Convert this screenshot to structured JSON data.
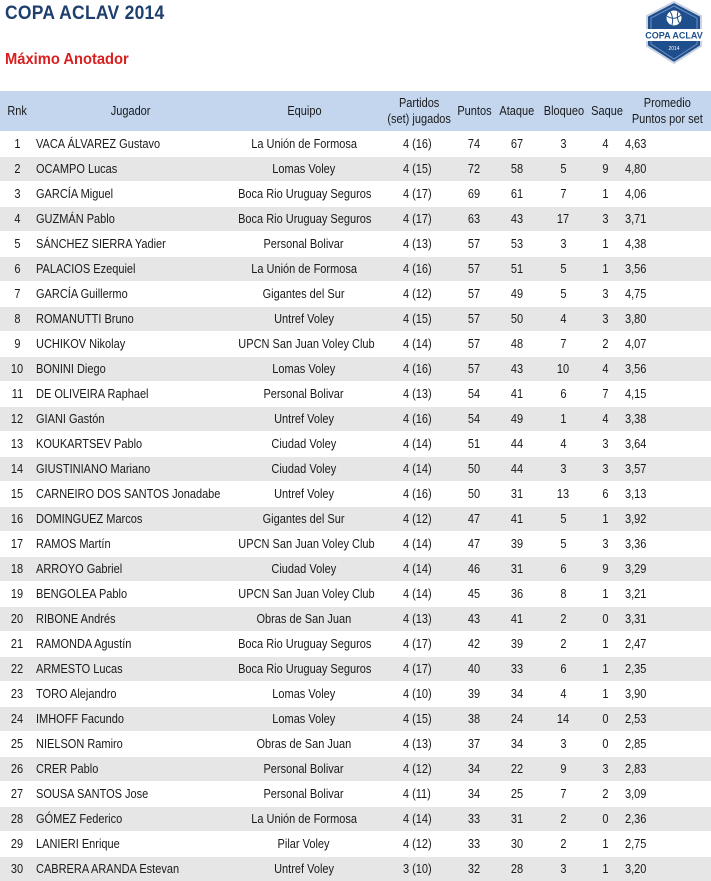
{
  "header": {
    "title": "COPA ACLAV 2014",
    "subtitle": "Máximo Anotador",
    "logo_text": "COPA ACLAV",
    "logo_year": "2014"
  },
  "colors": {
    "title": "#1f3f6e",
    "subtitle": "#d92020",
    "header_bg": "#c3d6ee",
    "row_alt": "#e6e6e6",
    "logo_blue": "#1f4e8c"
  },
  "columns": [
    [
      "Rnk"
    ],
    [
      "Jugador"
    ],
    [
      "Equipo"
    ],
    [
      "Partidos",
      "(set) jugados"
    ],
    [
      "Puntos"
    ],
    [
      "Ataque"
    ],
    [
      "Bloqueo"
    ],
    [
      "Saque"
    ],
    [
      "Promedio",
      "Puntos por set"
    ]
  ],
  "rows": [
    [
      "1",
      "VACA ÁLVAREZ Gustavo",
      "La Unión de Formosa",
      "4 (16)",
      "74",
      "67",
      "3",
      "4",
      "4,63"
    ],
    [
      "2",
      "OCAMPO Lucas",
      "Lomas Voley",
      "4 (15)",
      "72",
      "58",
      "5",
      "9",
      "4,80"
    ],
    [
      "3",
      "GARCÍA Miguel",
      "Boca Rio Uruguay Seguros",
      "4 (17)",
      "69",
      "61",
      "7",
      "1",
      "4,06"
    ],
    [
      "4",
      "GUZMÁN Pablo",
      "Boca Rio Uruguay Seguros",
      "4 (17)",
      "63",
      "43",
      "17",
      "3",
      "3,71"
    ],
    [
      "5",
      "SÁNCHEZ SIERRA Yadier",
      "Personal Bolivar",
      "4 (13)",
      "57",
      "53",
      "3",
      "1",
      "4,38"
    ],
    [
      "6",
      "PALACIOS Ezequiel",
      "La Unión de Formosa",
      "4 (16)",
      "57",
      "51",
      "5",
      "1",
      "3,56"
    ],
    [
      "7",
      "GARCÍA Guillermo",
      "Gigantes del Sur",
      "4 (12)",
      "57",
      "49",
      "5",
      "3",
      "4,75"
    ],
    [
      "8",
      "ROMANUTTI Bruno",
      "Untref Voley",
      "4 (15)",
      "57",
      "50",
      "4",
      "3",
      "3,80"
    ],
    [
      "9",
      "UCHIKOV Nikolay",
      "UPCN San Juan Voley Club",
      "4 (14)",
      "57",
      "48",
      "7",
      "2",
      "4,07"
    ],
    [
      "10",
      "BONINI Diego",
      "Lomas Voley",
      "4 (16)",
      "57",
      "43",
      "10",
      "4",
      "3,56"
    ],
    [
      "11",
      "DE OLIVEIRA Raphael",
      "Personal Bolivar",
      "4 (13)",
      "54",
      "41",
      "6",
      "7",
      "4,15"
    ],
    [
      "12",
      "GIANI Gastón",
      "Untref Voley",
      "4 (16)",
      "54",
      "49",
      "1",
      "4",
      "3,38"
    ],
    [
      "13",
      "KOUKARTSEV Pablo",
      "Ciudad Voley",
      "4 (14)",
      "51",
      "44",
      "4",
      "3",
      "3,64"
    ],
    [
      "14",
      "GIUSTINIANO Mariano",
      "Ciudad Voley",
      "4 (14)",
      "50",
      "44",
      "3",
      "3",
      "3,57"
    ],
    [
      "15",
      "CARNEIRO DOS SANTOS Jonadabe",
      "Untref Voley",
      "4 (16)",
      "50",
      "31",
      "13",
      "6",
      "3,13"
    ],
    [
      "16",
      "DOMINGUEZ Marcos",
      "Gigantes del Sur",
      "4 (12)",
      "47",
      "41",
      "5",
      "1",
      "3,92"
    ],
    [
      "17",
      "RAMOS Martín",
      "UPCN San Juan Voley Club",
      "4 (14)",
      "47",
      "39",
      "5",
      "3",
      "3,36"
    ],
    [
      "18",
      "ARROYO Gabriel",
      "Ciudad Voley",
      "4 (14)",
      "46",
      "31",
      "6",
      "9",
      "3,29"
    ],
    [
      "19",
      "BENGOLEA Pablo",
      "UPCN San Juan Voley Club",
      "4 (14)",
      "45",
      "36",
      "8",
      "1",
      "3,21"
    ],
    [
      "20",
      "RIBONE Andrés",
      "Obras de San Juan",
      "4 (13)",
      "43",
      "41",
      "2",
      "0",
      "3,31"
    ],
    [
      "21",
      "RAMONDA Agustín",
      "Boca Rio Uruguay Seguros",
      "4 (17)",
      "42",
      "39",
      "2",
      "1",
      "2,47"
    ],
    [
      "22",
      "ARMESTO Lucas",
      "Boca Rio Uruguay Seguros",
      "4 (17)",
      "40",
      "33",
      "6",
      "1",
      "2,35"
    ],
    [
      "23",
      "TORO Alejandro",
      "Lomas Voley",
      "4 (10)",
      "39",
      "34",
      "4",
      "1",
      "3,90"
    ],
    [
      "24",
      "IMHOFF Facundo",
      "Lomas Voley",
      "4 (15)",
      "38",
      "24",
      "14",
      "0",
      "2,53"
    ],
    [
      "25",
      "NIELSON Ramiro",
      "Obras de San Juan",
      "4 (13)",
      "37",
      "34",
      "3",
      "0",
      "2,85"
    ],
    [
      "26",
      "CRER Pablo",
      "Personal Bolivar",
      "4 (12)",
      "34",
      "22",
      "9",
      "3",
      "2,83"
    ],
    [
      "27",
      "SOUSA SANTOS Jose",
      "Personal Bolivar",
      "4 (11)",
      "34",
      "25",
      "7",
      "2",
      "3,09"
    ],
    [
      "28",
      "GÓMEZ Federico",
      "La Unión de Formosa",
      "4 (14)",
      "33",
      "31",
      "2",
      "0",
      "2,36"
    ],
    [
      "29",
      "LANIERI Enrique",
      "Pilar Voley",
      "4 (12)",
      "33",
      "30",
      "2",
      "1",
      "2,75"
    ],
    [
      "30",
      "CABRERA ARANDA Estevan",
      "Untref Voley",
      "3 (10)",
      "32",
      "28",
      "3",
      "1",
      "3,20"
    ]
  ]
}
